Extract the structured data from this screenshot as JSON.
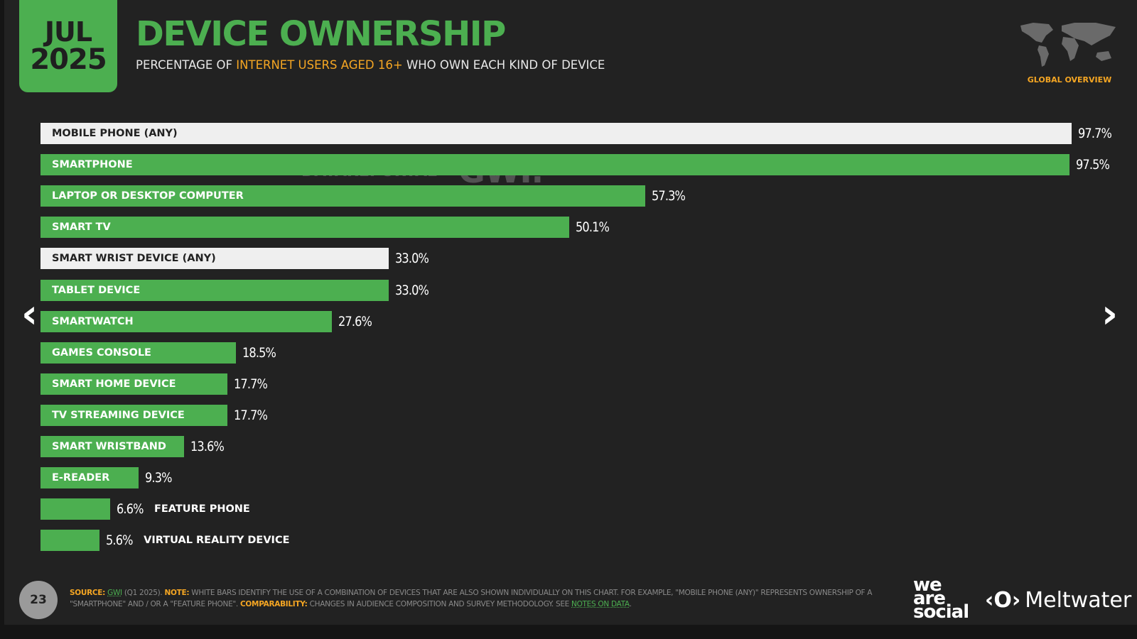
{
  "header": {
    "month": "JUL",
    "year": "2025",
    "title": "DEVICE OWNERSHIP",
    "subtitle_pre": "PERCENTAGE OF ",
    "subtitle_highlight": "INTERNET USERS AGED 16+",
    "subtitle_post": " WHO OWN EACH KIND OF DEVICE",
    "badge": "GLOBAL OVERVIEW"
  },
  "watermark": {
    "datareportal": "DATAREPORTAL",
    "gwi": "GWI."
  },
  "colors": {
    "green": "#4caf50",
    "white_bar": "#efefef",
    "accent": "#f5a623",
    "background": "#222222"
  },
  "chart_data": {
    "type": "bar",
    "orientation": "horizontal",
    "xlim": [
      0,
      100
    ],
    "grid": false,
    "categories": [
      "MOBILE PHONE (ANY)",
      "SMARTPHONE",
      "LAPTOP OR DESKTOP COMPUTER",
      "SMART TV",
      "SMART WRIST DEVICE (ANY)",
      "TABLET DEVICE",
      "SMARTWATCH",
      "GAMES CONSOLE",
      "SMART HOME DEVICE",
      "TV STREAMING DEVICE",
      "SMART WRISTBAND",
      "E-READER",
      "FEATURE PHONE",
      "VIRTUAL REALITY DEVICE"
    ],
    "values": [
      97.7,
      97.5,
      57.3,
      50.1,
      33.0,
      33.0,
      27.6,
      18.5,
      17.7,
      17.7,
      13.6,
      9.3,
      6.6,
      5.6
    ],
    "value_labels": [
      "97.7%",
      "97.5%",
      "57.3%",
      "50.1%",
      "33.0%",
      "33.0%",
      "27.6%",
      "18.5%",
      "17.7%",
      "17.7%",
      "13.6%",
      "9.3%",
      "6.6%",
      "5.6%"
    ],
    "bar_colors": [
      "white",
      "green",
      "green",
      "green",
      "white",
      "green",
      "green",
      "green",
      "green",
      "green",
      "green",
      "green",
      "green",
      "green"
    ]
  },
  "nav": {
    "prev_icon": "chevron-left-icon",
    "next_icon": "chevron-right-icon"
  },
  "footer": {
    "page_number": "23",
    "source_label": "SOURCE:",
    "source_link": "GWI",
    "source_rest": " (Q1 2025). ",
    "note_label": "NOTE:",
    "note_text": " WHITE BARS IDENTIFY THE USE OF A COMBINATION OF DEVICES THAT ARE ALSO SHOWN INDIVIDUALLY ON THIS CHART. FOR EXAMPLE, \"MOBILE PHONE (ANY)\" REPRESENTS OWNERSHIP OF A \"SMARTPHONE\" AND / OR A \"FEATURE PHONE\". ",
    "comparability_label": "COMPARABILITY:",
    "comparability_text": " CHANGES IN AUDIENCE COMPOSITION AND SURVEY METHODOLOGY. SEE ",
    "notes_link": "NOTES ON DATA",
    "end": ".",
    "logo_we_are_social": "we are social",
    "logo_meltwater": "Meltwater"
  }
}
